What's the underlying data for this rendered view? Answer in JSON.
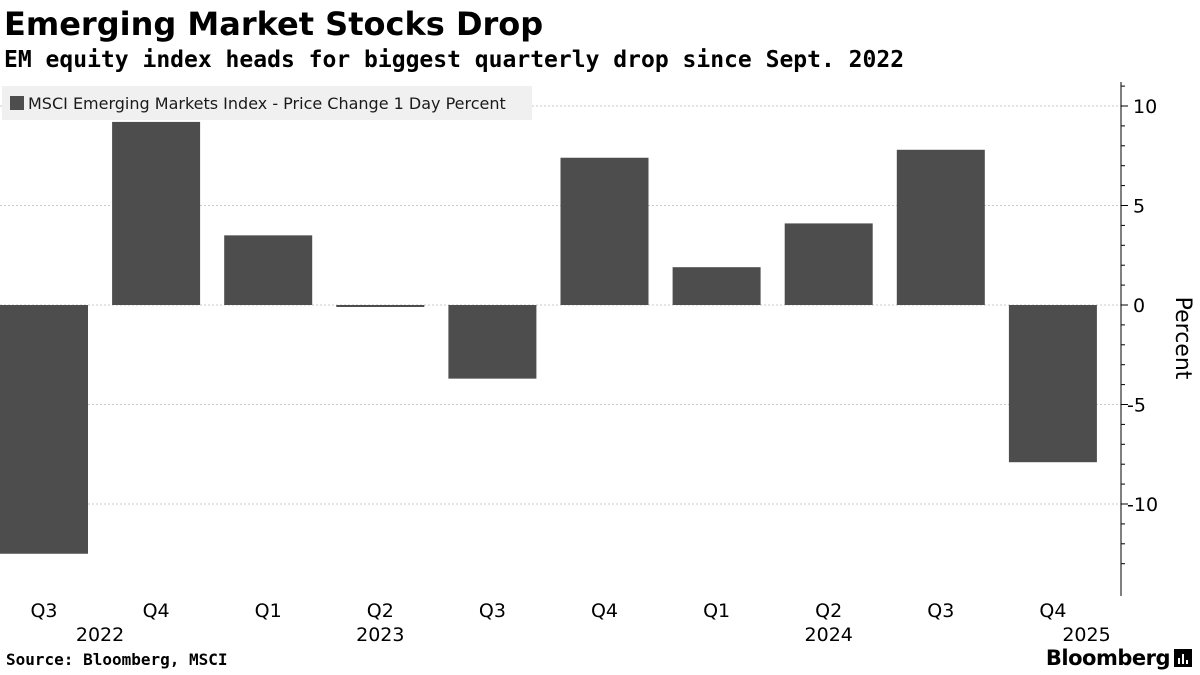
{
  "header": {
    "title": "Emerging Market Stocks Drop",
    "subtitle": "EM equity index heads for biggest quarterly drop since Sept. 2022"
  },
  "footer": {
    "source": "Source: Bloomberg, MSCI",
    "brand": "Bloomberg"
  },
  "colors": {
    "bar": "#4d4d4d",
    "grid": "#c8c8c8",
    "axis": "#000000",
    "legend_bg": "#f0f0f0"
  },
  "chart_data": {
    "type": "bar",
    "title": "Emerging Market Stocks Drop",
    "subtitle": "EM equity index heads for biggest quarterly drop since Sept. 2022",
    "ylabel": "Percent",
    "ylim": [
      -14,
      11
    ],
    "yticks": [
      10,
      5,
      0,
      -5,
      -10
    ],
    "grid": true,
    "legend_position": "top-left",
    "categories": [
      "Q3",
      "Q4",
      "Q1",
      "Q2",
      "Q3",
      "Q4",
      "Q1",
      "Q2",
      "Q3",
      "Q4"
    ],
    "year_labels": [
      {
        "label": "2022",
        "index": 0.5
      },
      {
        "label": "2023",
        "index": 3
      },
      {
        "label": "2024",
        "index": 7
      },
      {
        "label": "2025",
        "index": 9.3
      }
    ],
    "series": [
      {
        "name": "MSCI Emerging Markets Index - Price Change 1 Day Percent",
        "values": [
          -12.5,
          9.2,
          3.5,
          -0.1,
          -3.7,
          7.4,
          1.9,
          4.1,
          7.8,
          -7.9
        ]
      }
    ]
  }
}
